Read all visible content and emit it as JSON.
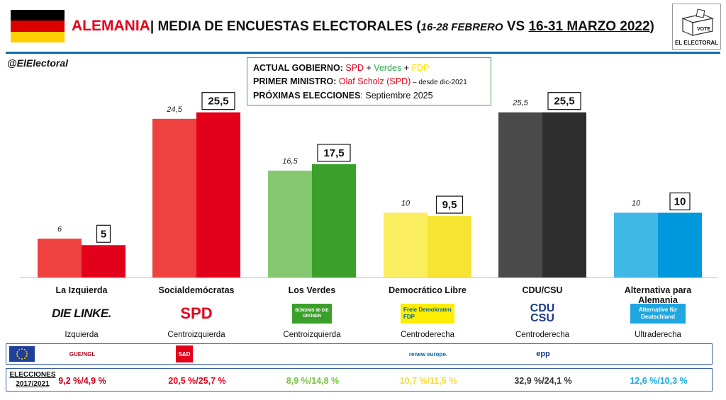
{
  "header": {
    "country": "ALEMANIA",
    "sep": "|",
    "title_main": "MEDIA DE ENCUESTAS ELECTORALES (",
    "period1": "16-28 FEBRERO",
    "vs": " VS ",
    "period2": "16-31 MARZO 2022",
    "close": ")",
    "handle": "@ElElectoral",
    "brand": "EL ELECTORAL",
    "vote": "VOTE"
  },
  "government": {
    "line1_label": "ACTUAL GOBIERNO:",
    "line1_spd": "SPD",
    "plus1": " + ",
    "line1_verdes": "Verdes",
    "plus2": " + ",
    "line1_fdp": "FDP",
    "line2_label": "PRIMER MINISTRO:",
    "line2_value": "Olaf Scholz (SPD)",
    "line2_note": " – desde dic-2021",
    "line3_label": "PRÓXIMAS ELECCIONES",
    "line3_value": ": Septiembre 2025"
  },
  "chart_data": {
    "type": "bar",
    "categories": [
      "La Izquierda",
      "Socialdemócratas",
      "Los Verdes",
      "Democrático Libre",
      "CDU/CSU",
      "Alternativa para Alemania"
    ],
    "series": [
      {
        "name": "16-28 FEBRERO",
        "values": [
          6,
          24.5,
          16.5,
          10,
          25.5,
          10
        ],
        "labels": [
          "6",
          "24,5",
          "16,5",
          "10",
          "25,5",
          "10"
        ]
      },
      {
        "name": "16-31 MARZO 2022",
        "values": [
          5,
          25.5,
          17.5,
          9.5,
          25.5,
          10
        ],
        "labels": [
          "5",
          "25,5",
          "17,5",
          "9,5",
          "25,5",
          "10"
        ]
      }
    ],
    "colors_prev": [
      "#f04141",
      "#f04141",
      "#86c872",
      "#fbee5e",
      "#4a4a4a",
      "#3fb8e8"
    ],
    "colors_curr": [
      "#e3001b",
      "#e3001b",
      "#3aa02a",
      "#f6e332",
      "#2e2e2e",
      "#0098dc"
    ],
    "ylim": [
      0,
      30
    ],
    "grid": false
  },
  "parties": [
    {
      "name": "La Izquierda",
      "ideology": "Izquierda",
      "logo_text": "DIE LINKE.",
      "eu_group": "GUE/NGL",
      "elections": "9,2 %/4,9 %",
      "el_color": "#c0001a"
    },
    {
      "name": "Socialdemócratas",
      "ideology": "Centroizquierda",
      "logo_text": "SPD",
      "eu_group": "S&D",
      "elections": "20,5 %/25,7 %",
      "el_color": "#e3001b"
    },
    {
      "name": "Los Verdes",
      "ideology": "Centroizquierda",
      "logo_text": "BÜNDNIS 90 DIE GRÜNEN",
      "eu_group": "",
      "elections": "8,9 %/14,8 %",
      "el_color": "#7ac143"
    },
    {
      "name": "Democrático Libre",
      "ideology": "Centroderecha",
      "logo_text": "Freie Demokraten FDP",
      "eu_group": "renew europe.",
      "elections": "10,7 %/11,5 %",
      "el_color": "#f5d94a"
    },
    {
      "name": "CDU/CSU",
      "ideology": "Centroderecha",
      "logo_text": "CDU CSU",
      "eu_group": "epp",
      "elections": "32,9 %/24,1 %",
      "el_color": "#333333"
    },
    {
      "name": "Alternativa para Alemania",
      "ideology": "Ultraderecha",
      "logo_text": "Alternative für Deutschland",
      "eu_group": "",
      "elections": "12,6 %/10,3 %",
      "el_color": "#1ea7e1"
    }
  ],
  "elections_label": "ELECCIONES 2017/2021"
}
